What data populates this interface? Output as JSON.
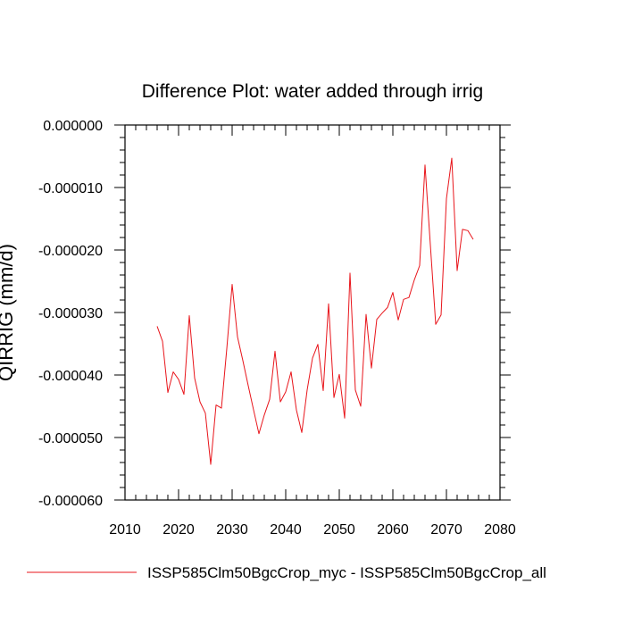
{
  "chart_data": {
    "type": "line",
    "title": "Difference Plot: water added through irrig",
    "xlabel": "",
    "ylabel": "QIRRIG  (mm/d)",
    "xlim": [
      2010,
      2080
    ],
    "ylim": [
      -6e-05,
      0.0
    ],
    "x_ticks": [
      2010,
      2020,
      2030,
      2040,
      2050,
      2060,
      2070,
      2080
    ],
    "x_tick_labels": [
      "2010",
      "2020",
      "2030",
      "2040",
      "2050",
      "2060",
      "2070",
      "2080"
    ],
    "y_ticks": [
      0.0,
      -1e-05,
      -2e-05,
      -3e-05,
      -4e-05,
      -5e-05,
      -6e-05
    ],
    "y_tick_labels": [
      "0.000000",
      "-0.000010",
      "-0.000020",
      "-0.000030",
      "-0.000040",
      "-0.000050",
      "-0.000060"
    ],
    "grid": false,
    "legend_position": "bottom",
    "series": [
      {
        "name": "ISSP585Clm50BgcCrop_myc - ISSP585Clm50BgcCrop_all",
        "color": "#e8151b",
        "x": [
          2016,
          2017,
          2018,
          2019,
          2020,
          2021,
          2022,
          2023,
          2024,
          2025,
          2026,
          2027,
          2028,
          2029,
          2030,
          2031,
          2032,
          2033,
          2034,
          2035,
          2036,
          2037,
          2038,
          2039,
          2040,
          2041,
          2042,
          2043,
          2044,
          2045,
          2046,
          2047,
          2048,
          2049,
          2050,
          2051,
          2052,
          2053,
          2054,
          2055,
          2056,
          2057,
          2058,
          2059,
          2060,
          2061,
          2062,
          2063,
          2064,
          2065,
          2066,
          2067,
          2068,
          2069,
          2070,
          2071,
          2072,
          2073,
          2074,
          2075
        ],
        "y": [
          -3.22e-05,
          -3.46e-05,
          -4.28e-05,
          -3.95e-05,
          -4.07e-05,
          -4.31e-05,
          -3.05e-05,
          -4.05e-05,
          -4.43e-05,
          -4.61e-05,
          -5.43e-05,
          -4.48e-05,
          -4.53e-05,
          -3.58e-05,
          -2.55e-05,
          -3.39e-05,
          -3.77e-05,
          -4.17e-05,
          -4.56e-05,
          -4.94e-05,
          -4.64e-05,
          -4.39e-05,
          -3.62e-05,
          -4.43e-05,
          -4.27e-05,
          -3.95e-05,
          -4.56e-05,
          -4.92e-05,
          -4.24e-05,
          -3.73e-05,
          -3.51e-05,
          -4.25e-05,
          -2.86e-05,
          -4.36e-05,
          -3.99e-05,
          -4.69e-05,
          -2.37e-05,
          -4.24e-05,
          -4.5e-05,
          -3.03e-05,
          -3.89e-05,
          -3.11e-05,
          -3.01e-05,
          -2.92e-05,
          -2.68e-05,
          -3.12e-05,
          -2.79e-05,
          -2.76e-05,
          -2.48e-05,
          -2.25e-05,
          -6.4e-06,
          -1.92e-05,
          -3.19e-05,
          -3.04e-05,
          -1.18e-05,
          -5.3e-06,
          -2.33e-05,
          -1.67e-05,
          -1.69e-05,
          -1.83e-05
        ]
      }
    ]
  }
}
